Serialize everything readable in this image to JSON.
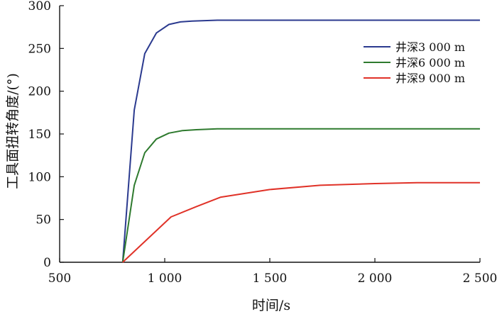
{
  "chart_data": {
    "type": "line",
    "xlabel": "时间/s",
    "ylabel": "工具面扭转角度/(°)",
    "xlim": [
      500,
      2500
    ],
    "ylim": [
      0,
      300
    ],
    "xticks": [
      500,
      1000,
      1500,
      2000,
      2500
    ],
    "xtick_labels": [
      "500",
      "1 000",
      "1 500",
      "2 000",
      "2 500"
    ],
    "yticks": [
      0,
      50,
      100,
      150,
      200,
      250,
      300
    ],
    "ytick_labels": [
      "0",
      "50",
      "100",
      "150",
      "200",
      "250",
      "300"
    ],
    "grid": false,
    "legend_position": "top-right",
    "series": [
      {
        "name": "井深3 000 m",
        "color": "#2b3a8f",
        "x": [
          800,
          855,
          905,
          960,
          1020,
          1075,
          1130,
          1250,
          1500,
          2000,
          2500
        ],
        "y": [
          0,
          178,
          244,
          268,
          278,
          281,
          282,
          283,
          283,
          283,
          283
        ]
      },
      {
        "name": "井深6 000 m",
        "color": "#2e7a2e",
        "x": [
          800,
          855,
          905,
          960,
          1020,
          1085,
          1150,
          1250,
          1500,
          2000,
          2500
        ],
        "y": [
          0,
          90,
          128,
          144,
          151,
          154,
          155,
          156,
          156,
          156,
          156
        ]
      },
      {
        "name": "井深9 000 m",
        "color": "#e03228",
        "x": [
          800,
          1030,
          1150,
          1265,
          1500,
          1740,
          2000,
          2200,
          2500
        ],
        "y": [
          0,
          53,
          65,
          76,
          85,
          90,
          92,
          93,
          93
        ]
      }
    ]
  }
}
